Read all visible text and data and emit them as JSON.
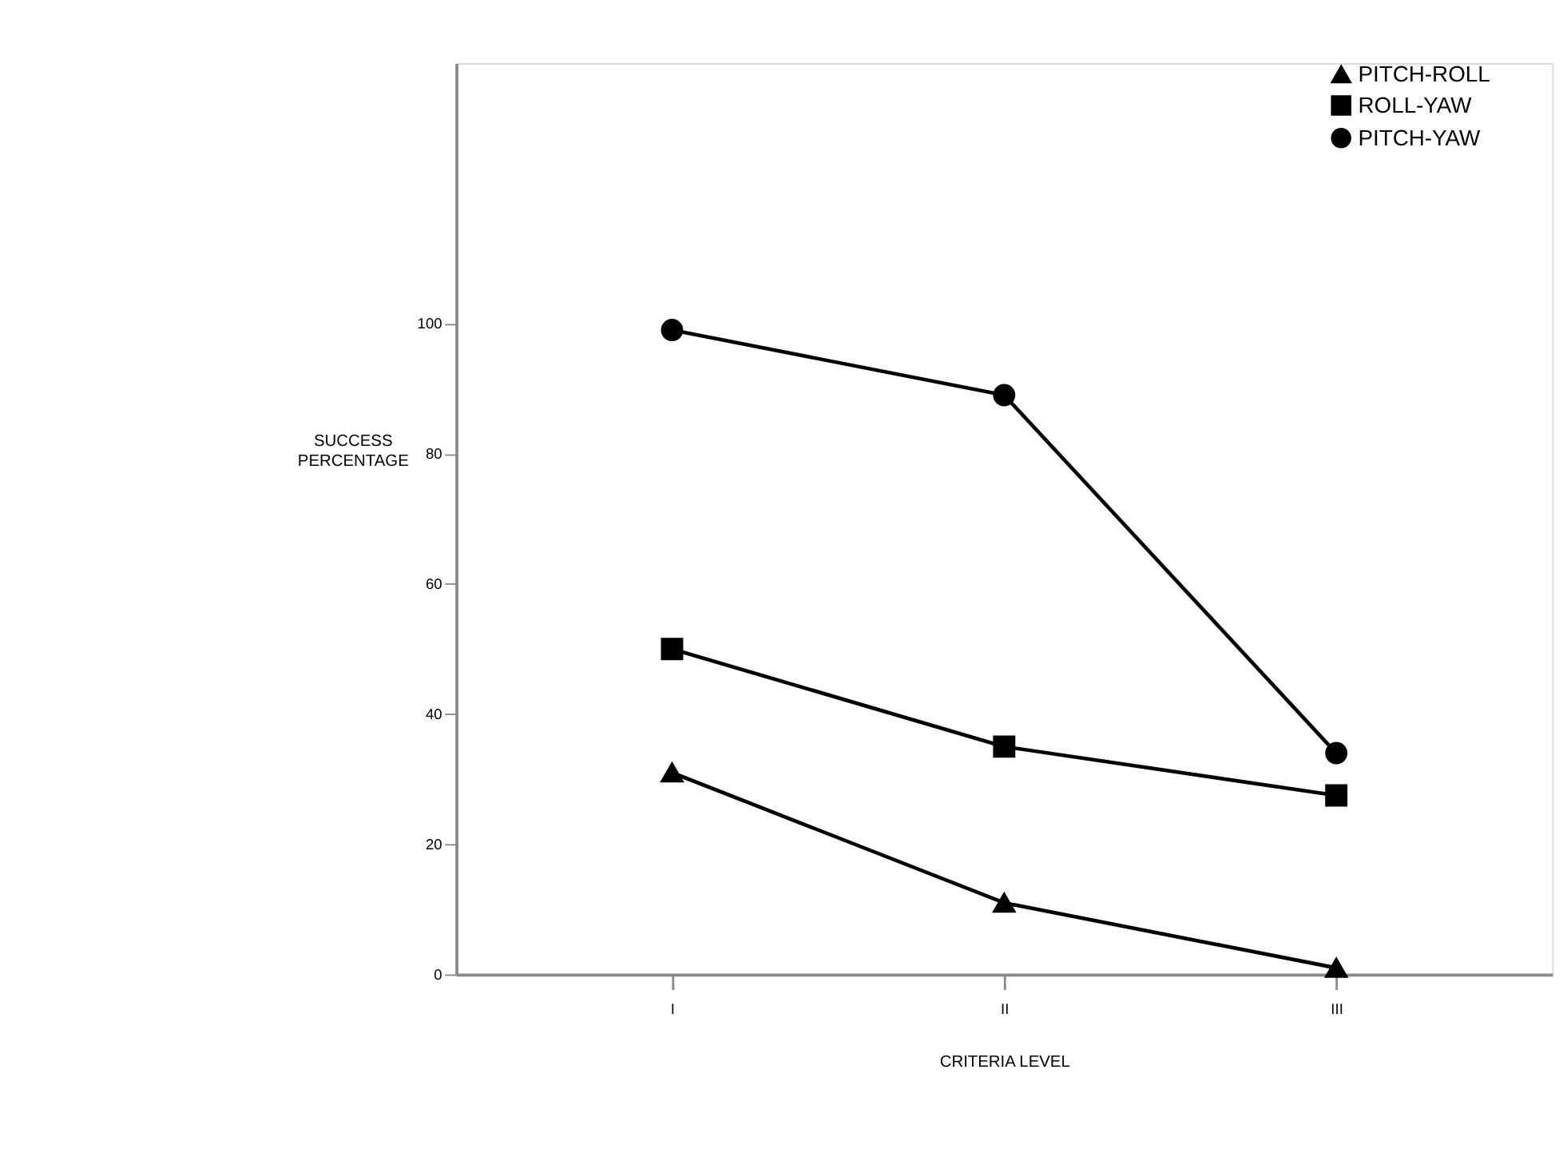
{
  "chart_data": {
    "type": "line",
    "xlabel": "CRITERIA LEVEL",
    "ylabel": "SUCCESS\nPERCENTAGE",
    "categories": [
      "I",
      "II",
      "III"
    ],
    "series": [
      {
        "name": "PITCH-ROLL",
        "color": "#000000",
        "marker": "triangle",
        "values": [
          31,
          11,
          1
        ]
      },
      {
        "name": "ROLL-YAW",
        "color": "#000000",
        "marker": "square",
        "values": [
          50,
          35,
          27.5
        ]
      },
      {
        "name": "PITCH-YAW",
        "color": "#000000",
        "marker": "circle",
        "values": [
          99,
          89,
          34
        ]
      }
    ],
    "ylim": [
      0,
      140
    ],
    "yticks": [
      0,
      20,
      40,
      60,
      80,
      100
    ],
    "grid": false,
    "legend": "right",
    "line_style": "solid"
  }
}
